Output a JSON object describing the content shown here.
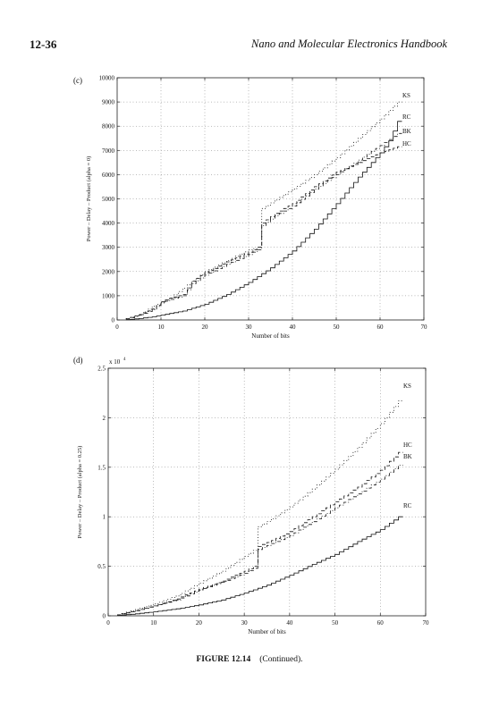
{
  "header": {
    "page_number": "12-36",
    "book_title": "Nano and Molecular Electronics Handbook"
  },
  "caption": {
    "figure_label": "FIGURE 12.14",
    "text": "(Continued)."
  },
  "chart_data": [
    {
      "panel_label": "(c)",
      "type": "line",
      "xlabel": "Number of bits",
      "ylabel": "Power – Delay – Product (alpha = 0)",
      "xlim": [
        0,
        70
      ],
      "ylim": [
        0,
        10000
      ],
      "x_ticks": [
        0,
        10,
        20,
        30,
        40,
        50,
        60,
        70
      ],
      "y_ticks": [
        0,
        1000,
        2000,
        3000,
        4000,
        5000,
        6000,
        7000,
        8000,
        9000,
        10000
      ],
      "y_multiplier": "",
      "grid": true,
      "series": [
        {
          "name": "KS",
          "style": "dotted",
          "points": [
            [
              2,
              60
            ],
            [
              5,
              220
            ],
            [
              8,
              560
            ],
            [
              12,
              900
            ],
            [
              16,
              1450
            ],
            [
              20,
              2000
            ],
            [
              25,
              2450
            ],
            [
              30,
              2900
            ],
            [
              32,
              3000
            ],
            [
              33,
              4600
            ],
            [
              36,
              4950
            ],
            [
              40,
              5400
            ],
            [
              45,
              6000
            ],
            [
              50,
              6700
            ],
            [
              55,
              7500
            ],
            [
              60,
              8300
            ],
            [
              64,
              9000
            ]
          ]
        },
        {
          "name": "RC",
          "style": "solid",
          "points": [
            [
              2,
              10
            ],
            [
              5,
              60
            ],
            [
              8,
              130
            ],
            [
              10,
              200
            ],
            [
              15,
              370
            ],
            [
              20,
              650
            ],
            [
              25,
              1050
            ],
            [
              30,
              1550
            ],
            [
              35,
              2150
            ],
            [
              40,
              2850
            ],
            [
              45,
              3750
            ],
            [
              50,
              4800
            ],
            [
              55,
              5900
            ],
            [
              58,
              6500
            ],
            [
              60,
              6900
            ],
            [
              62,
              7400
            ],
            [
              64,
              8200
            ]
          ]
        },
        {
          "name": "BK",
          "style": "dashdot",
          "points": [
            [
              2,
              40
            ],
            [
              5,
              200
            ],
            [
              8,
              420
            ],
            [
              10,
              700
            ],
            [
              12,
              850
            ],
            [
              15,
              1000
            ],
            [
              17,
              1500
            ],
            [
              20,
              1850
            ],
            [
              25,
              2300
            ],
            [
              30,
              2700
            ],
            [
              32,
              2900
            ],
            [
              33,
              3900
            ],
            [
              36,
              4300
            ],
            [
              40,
              4700
            ],
            [
              45,
              5400
            ],
            [
              50,
              6000
            ],
            [
              55,
              6600
            ],
            [
              60,
              7200
            ],
            [
              64,
              7700
            ]
          ]
        },
        {
          "name": "HC",
          "style": "dashed",
          "points": [
            [
              2,
              50
            ],
            [
              5,
              220
            ],
            [
              8,
              450
            ],
            [
              10,
              750
            ],
            [
              12,
              900
            ],
            [
              15,
              1050
            ],
            [
              17,
              1600
            ],
            [
              20,
              1950
            ],
            [
              25,
              2400
            ],
            [
              30,
              2800
            ],
            [
              32,
              3000
            ],
            [
              33,
              4000
            ],
            [
              36,
              4400
            ],
            [
              40,
              4800
            ],
            [
              45,
              5500
            ],
            [
              50,
              6100
            ],
            [
              55,
              6500
            ],
            [
              60,
              6900
            ],
            [
              64,
              7150
            ]
          ]
        }
      ]
    },
    {
      "panel_label": "(d)",
      "type": "line",
      "xlabel": "Number of bits",
      "ylabel": "Power – Delay – Product (alpha = 0.25)",
      "xlim": [
        0,
        70
      ],
      "ylim": [
        0,
        2.5
      ],
      "x_ticks": [
        0,
        10,
        20,
        30,
        40,
        50,
        60,
        70
      ],
      "y_ticks": [
        0,
        0.5,
        1,
        1.5,
        2,
        2.5
      ],
      "y_multiplier": "x 10",
      "y_multiplier_exp": "4",
      "grid": true,
      "series": [
        {
          "name": "KS",
          "style": "dotted",
          "points": [
            [
              2,
              0.01
            ],
            [
              5,
              0.05
            ],
            [
              10,
              0.12
            ],
            [
              15,
              0.2
            ],
            [
              20,
              0.33
            ],
            [
              25,
              0.45
            ],
            [
              30,
              0.6
            ],
            [
              32,
              0.66
            ],
            [
              33,
              0.9
            ],
            [
              36,
              0.98
            ],
            [
              40,
              1.1
            ],
            [
              45,
              1.28
            ],
            [
              50,
              1.48
            ],
            [
              55,
              1.7
            ],
            [
              60,
              1.94
            ],
            [
              64,
              2.17
            ]
          ]
        },
        {
          "name": "HC",
          "style": "dashed",
          "points": [
            [
              2,
              0.01
            ],
            [
              5,
              0.04
            ],
            [
              10,
              0.1
            ],
            [
              15,
              0.17
            ],
            [
              20,
              0.27
            ],
            [
              25,
              0.35
            ],
            [
              30,
              0.45
            ],
            [
              32,
              0.5
            ],
            [
              33,
              0.7
            ],
            [
              36,
              0.76
            ],
            [
              40,
              0.85
            ],
            [
              45,
              1.0
            ],
            [
              50,
              1.15
            ],
            [
              55,
              1.3
            ],
            [
              60,
              1.47
            ],
            [
              64,
              1.65
            ]
          ]
        },
        {
          "name": "BK",
          "style": "dashdot",
          "points": [
            [
              2,
              0.01
            ],
            [
              5,
              0.04
            ],
            [
              10,
              0.1
            ],
            [
              15,
              0.16
            ],
            [
              20,
              0.26
            ],
            [
              25,
              0.34
            ],
            [
              30,
              0.43
            ],
            [
              32,
              0.48
            ],
            [
              33,
              0.67
            ],
            [
              36,
              0.73
            ],
            [
              40,
              0.81
            ],
            [
              45,
              0.95
            ],
            [
              50,
              1.09
            ],
            [
              55,
              1.23
            ],
            [
              60,
              1.38
            ],
            [
              64,
              1.52
            ]
          ]
        },
        {
          "name": "RC",
          "style": "solid",
          "points": [
            [
              2,
              0.005
            ],
            [
              5,
              0.015
            ],
            [
              10,
              0.04
            ],
            [
              15,
              0.07
            ],
            [
              20,
              0.11
            ],
            [
              25,
              0.16
            ],
            [
              30,
              0.23
            ],
            [
              35,
              0.31
            ],
            [
              40,
              0.41
            ],
            [
              45,
              0.52
            ],
            [
              50,
              0.62
            ],
            [
              55,
              0.75
            ],
            [
              60,
              0.87
            ],
            [
              64,
              1.0
            ]
          ]
        }
      ]
    }
  ]
}
